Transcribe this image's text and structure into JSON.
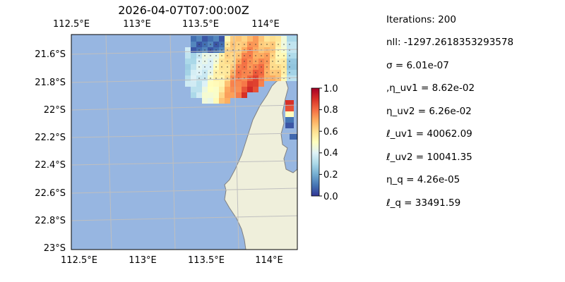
{
  "chart_data": {
    "type": "heatmap",
    "title": "2026-04-07T07:00:00Z",
    "x_ticks_top": [
      "112.5°E",
      "113°E",
      "113.5°E",
      "114°E"
    ],
    "x_ticks_bottom": [
      "112.5°E",
      "113°E",
      "113.5°E",
      "114°E"
    ],
    "y_ticks": [
      "21.6°S",
      "21.8°S",
      "22°S",
      "22.2°S",
      "22.4°S",
      "22.6°S",
      "22.8°S",
      "23°S"
    ],
    "lon_range": [
      112.5,
      114.2
    ],
    "lat_range": [
      -23.0,
      -21.45
    ],
    "colorbar": {
      "ticks": [
        "0.0",
        "0.2",
        "0.4",
        "0.6",
        "0.8",
        "1.0"
      ],
      "range": [
        0,
        1
      ],
      "colormap": "RdYlBu_r"
    },
    "colors": {
      "ocean": "#97b6e1",
      "land": "#efefdb",
      "coast": "#808080",
      "grid": "#bfbfbf"
    }
  },
  "info_panel": {
    "iterations": "Iterations: 200",
    "nll": "nll: -1297.2618353293578",
    "sigma": "σ = 6.01e-07",
    "eta_uv1": ",η_uv1 = 8.62e-02",
    "eta_uv2": "η_uv2 = 6.26e-02",
    "ell_uv1": "ℓ_uv1 = 40062.09",
    "ell_uv2": "ℓ_uv2 = 10041.35",
    "eta_q": "η_q = 4.26e-05",
    "ell_q": "ℓ_q = 33491.59"
  }
}
